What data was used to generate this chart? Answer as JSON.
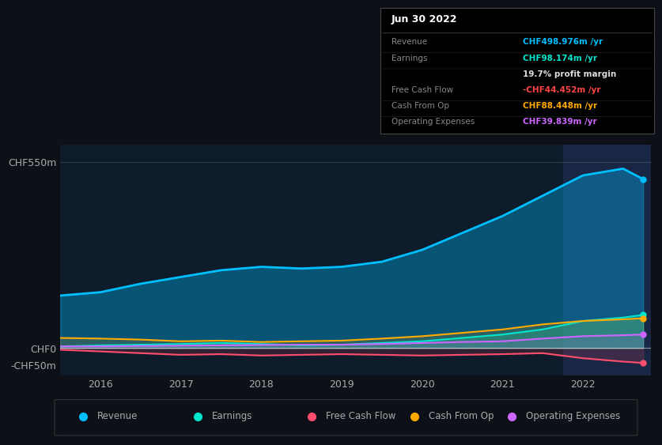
{
  "bg_color": "#0d1117",
  "plot_bg_color": "#0d1b2a",
  "highlight_bg": "#1a2744",
  "years": [
    2015.5,
    2016.0,
    2016.5,
    2017.0,
    2017.5,
    2018.0,
    2018.5,
    2019.0,
    2019.5,
    2020.0,
    2020.5,
    2021.0,
    2021.5,
    2022.0,
    2022.5,
    2022.75
  ],
  "revenue": [
    155,
    165,
    190,
    210,
    230,
    240,
    235,
    240,
    255,
    290,
    340,
    390,
    450,
    510,
    530,
    499
  ],
  "earnings": [
    5,
    8,
    10,
    12,
    15,
    12,
    8,
    10,
    15,
    20,
    30,
    40,
    55,
    80,
    90,
    98
  ],
  "free_cash_flow": [
    -5,
    -10,
    -15,
    -20,
    -18,
    -22,
    -20,
    -18,
    -20,
    -22,
    -20,
    -18,
    -15,
    -30,
    -40,
    -44
  ],
  "cash_from_op": [
    30,
    28,
    25,
    20,
    22,
    18,
    20,
    22,
    28,
    35,
    45,
    55,
    70,
    80,
    85,
    88
  ],
  "op_expenses": [
    5,
    5,
    6,
    7,
    8,
    9,
    10,
    10,
    12,
    15,
    18,
    20,
    28,
    35,
    38,
    40
  ],
  "revenue_color": "#00bfff",
  "earnings_color": "#00e5cc",
  "fcf_color": "#ff4d6d",
  "cfop_color": "#ffaa00",
  "opex_color": "#cc66ff",
  "revenue_fill_alpha": 0.35,
  "earnings_fill_alpha": 0.25,
  "highlight_x_start": 2021.75,
  "highlight_x_end": 2022.85,
  "tooltip_title": "Jun 30 2022",
  "tooltip_rows": [
    {
      "label": "Revenue",
      "value": "CHF498.976m /yr",
      "color": "#00bfff"
    },
    {
      "label": "Earnings",
      "value": "CHF98.174m /yr",
      "color": "#00e5cc"
    },
    {
      "label": "",
      "value": "19.7% profit margin",
      "color": "#dddddd"
    },
    {
      "label": "Free Cash Flow",
      "value": "-CHF44.452m /yr",
      "color": "#ff4444"
    },
    {
      "label": "Cash From Op",
      "value": "CHF88.448m /yr",
      "color": "#ffaa00"
    },
    {
      "label": "Operating Expenses",
      "value": "CHF39.839m /yr",
      "color": "#cc66ff"
    }
  ],
  "ylim_min": -80,
  "ylim_max": 600,
  "xlim_min": 2015.5,
  "xlim_max": 2022.85,
  "ytick_positions": [
    550,
    0,
    -50
  ],
  "ytick_labels": [
    "CHF550m",
    "CHF0",
    "-CHF50m"
  ],
  "xtick_positions": [
    2016,
    2017,
    2018,
    2019,
    2020,
    2021,
    2022
  ],
  "xtick_labels": [
    "2016",
    "2017",
    "2018",
    "2019",
    "2020",
    "2021",
    "2022"
  ],
  "legend_items": [
    {
      "label": "Revenue",
      "color": "#00bfff"
    },
    {
      "label": "Earnings",
      "color": "#00e5cc"
    },
    {
      "label": "Free Cash Flow",
      "color": "#ff4d6d"
    },
    {
      "label": "Cash From Op",
      "color": "#ffaa00"
    },
    {
      "label": "Operating Expenses",
      "color": "#cc66ff"
    }
  ]
}
